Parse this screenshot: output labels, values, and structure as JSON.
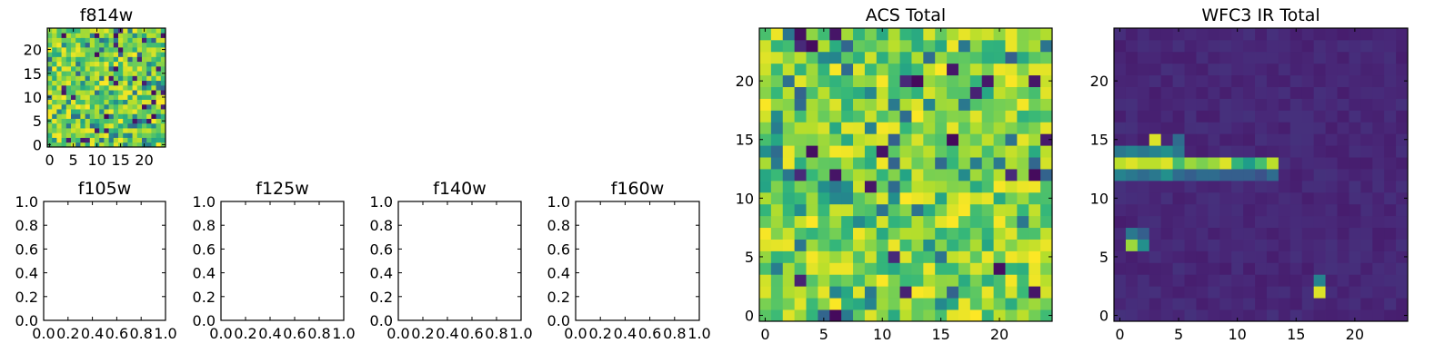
{
  "figure": {
    "background": "#ffffff"
  },
  "chart_data": [
    {
      "type": "heatmap",
      "title": "f814w",
      "colormap": "viridis",
      "grid_size": [
        25,
        25
      ],
      "xlim": [
        -0.5,
        24.5
      ],
      "ylim": [
        -0.5,
        24.5
      ],
      "x_ticks": [
        0,
        5,
        10,
        15,
        20
      ],
      "y_ticks": [
        0,
        5,
        10,
        15,
        20
      ],
      "value_range": [
        0,
        1
      ],
      "noise": "uniform random, mostly high (green-yellow)"
    },
    {
      "type": "empty",
      "title": "f105w",
      "xlim": [
        0,
        1
      ],
      "ylim": [
        0,
        1
      ],
      "x_ticks": [
        "0.0",
        "0.2",
        "0.4",
        "0.6",
        "0.8",
        "1.0"
      ],
      "y_ticks": [
        "0.0",
        "0.2",
        "0.4",
        "0.6",
        "0.8",
        "1.0"
      ]
    },
    {
      "type": "empty",
      "title": "f125w",
      "xlim": [
        0,
        1
      ],
      "ylim": [
        0,
        1
      ],
      "x_ticks": [
        "0.0",
        "0.2",
        "0.4",
        "0.6",
        "0.8",
        "1.0"
      ],
      "y_ticks": [
        "0.0",
        "0.2",
        "0.4",
        "0.6",
        "0.8",
        "1.0"
      ]
    },
    {
      "type": "empty",
      "title": "f140w",
      "xlim": [
        0,
        1
      ],
      "ylim": [
        0,
        1
      ],
      "x_ticks": [
        "0.0",
        "0.2",
        "0.4",
        "0.6",
        "0.8",
        "1.0"
      ],
      "y_ticks": [
        "0.0",
        "0.2",
        "0.4",
        "0.6",
        "0.8",
        "1.0"
      ]
    },
    {
      "type": "empty",
      "title": "f160w",
      "xlim": [
        0,
        1
      ],
      "ylim": [
        0,
        1
      ],
      "x_ticks": [
        "0.0",
        "0.2",
        "0.4",
        "0.6",
        "0.8",
        "1.0"
      ],
      "y_ticks": [
        "0.0",
        "0.2",
        "0.4",
        "0.6",
        "0.8",
        "1.0"
      ]
    },
    {
      "type": "heatmap",
      "title": "ACS Total",
      "colormap": "viridis",
      "grid_size": [
        25,
        25
      ],
      "xlim": [
        -0.5,
        24.5
      ],
      "ylim": [
        -0.5,
        24.5
      ],
      "x_ticks": [
        0,
        5,
        10,
        15,
        20
      ],
      "y_ticks": [
        0,
        5,
        10,
        15,
        20
      ],
      "value_range": [
        0,
        1
      ],
      "noise": "uniform random, mostly high (green-yellow)"
    },
    {
      "type": "heatmap",
      "title": "WFC3 IR Total",
      "colormap": "viridis",
      "grid_size": [
        25,
        25
      ],
      "xlim": [
        -0.5,
        24.5
      ],
      "ylim": [
        -0.5,
        24.5
      ],
      "x_ticks": [
        0,
        5,
        10,
        15,
        20
      ],
      "y_ticks": [
        0,
        5,
        10,
        15,
        20
      ],
      "value_range": [
        0,
        1
      ],
      "background_level": 0.08,
      "features": [
        {
          "row": 13,
          "cols": [
            0,
            1,
            2,
            3,
            4,
            5,
            6,
            7,
            8,
            9,
            10,
            11,
            12,
            13
          ],
          "values": [
            0.9,
            0.95,
            0.9,
            0.9,
            0.95,
            0.7,
            0.85,
            0.8,
            0.85,
            0.95,
            0.65,
            0.55,
            0.7,
            0.9
          ]
        },
        {
          "row": 14,
          "cols": [
            0,
            1,
            2,
            3,
            4,
            5
          ],
          "values": [
            0.4,
            0.45,
            0.4,
            0.45,
            0.5,
            0.4
          ]
        },
        {
          "row": 12,
          "cols": [
            0,
            1,
            2,
            3,
            4,
            5,
            6,
            7,
            8,
            9,
            10,
            11,
            12,
            13
          ],
          "values": [
            0.45,
            0.4,
            0.35,
            0.4,
            0.5,
            0.35,
            0.3,
            0.35,
            0.35,
            0.3,
            0.3,
            0.3,
            0.25,
            0.35
          ]
        },
        {
          "row": 15,
          "cols": [
            3
          ],
          "values": [
            0.95
          ]
        },
        {
          "row": 15,
          "cols": [
            5
          ],
          "values": [
            0.35
          ]
        },
        {
          "row": 6,
          "cols": [
            1,
            2
          ],
          "values": [
            0.85,
            0.5
          ]
        },
        {
          "row": 7,
          "cols": [
            1,
            2
          ],
          "values": [
            0.4,
            0.3
          ]
        },
        {
          "row": 2,
          "cols": [
            17
          ],
          "values": [
            0.95
          ]
        },
        {
          "row": 3,
          "cols": [
            17
          ],
          "values": [
            0.45
          ]
        }
      ]
    }
  ]
}
